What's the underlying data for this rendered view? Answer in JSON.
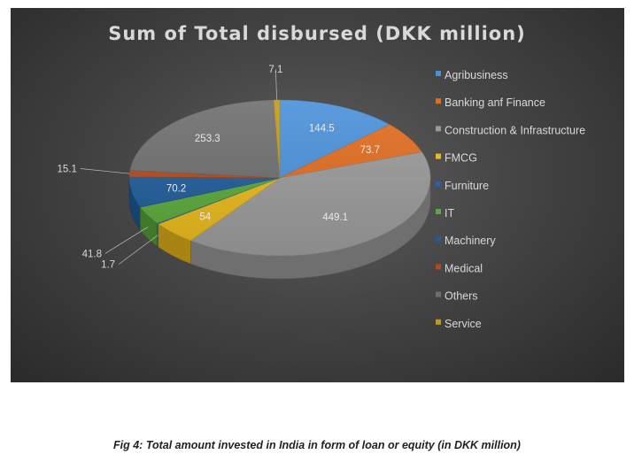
{
  "chart_data": {
    "type": "pie",
    "title": "Sum of Total disbursed (DKK million)",
    "categories": [
      "Agribusiness",
      "Banking anf Finance",
      "Construction & Infrastructure",
      "FMCG",
      "Furniture",
      "IT",
      "Machinery",
      "Medical",
      "Others",
      "Service"
    ],
    "values": [
      144.5,
      73.7,
      449.1,
      54,
      1.7,
      41.8,
      70.2,
      15.1,
      253.3,
      7.1
    ],
    "colors": [
      "#4a90d9",
      "#e06c1f",
      "#9a9a9a",
      "#e8b81c",
      "#2a5fae",
      "#5aa83b",
      "#1f5c99",
      "#b5481a",
      "#6e6e6e",
      "#c49a12"
    ],
    "legend_position": "right",
    "style": "3d-pie"
  },
  "caption": "Fig 4: Total amount invested in India in form of loan or equity (in DKK million)"
}
